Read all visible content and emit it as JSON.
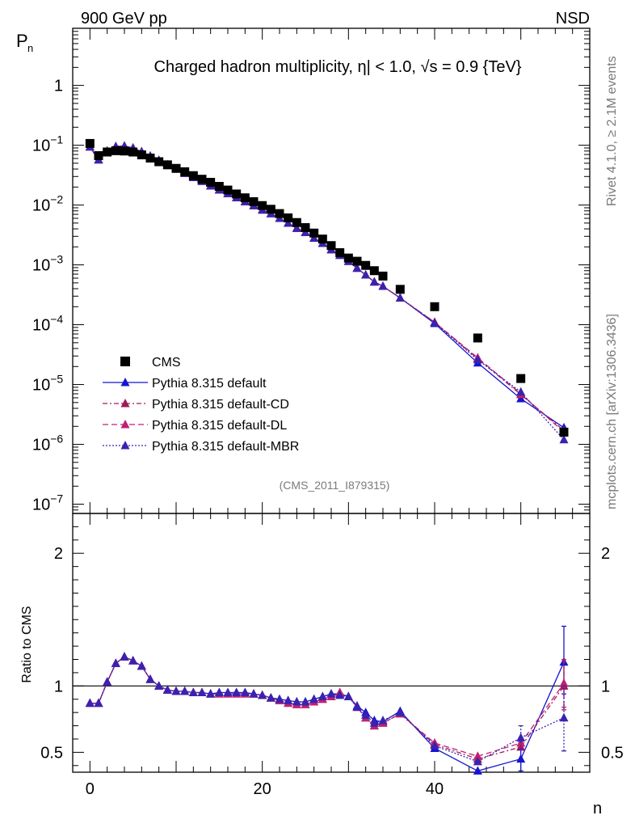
{
  "header": {
    "left": "900 GeV pp",
    "right": "NSD"
  },
  "side_labels": {
    "rivet": "Rivet 4.1.0, ≥ 2.1M events",
    "mcplots": "mcplots.cern.ch [arXiv:1306.3436]"
  },
  "chart_data": [
    {
      "type": "scatter",
      "title": "Charged hadron multiplicity, η| < 1.0, √s = 0.9 {TeV}",
      "ylabel": "P",
      "ylabel_sub": "n",
      "xlabel": "n",
      "yscale": "log",
      "ylim": [
        7e-08,
        9
      ],
      "xlim": [
        -2,
        58
      ],
      "ytick_labels": [
        {
          "v": 1,
          "base": "1",
          "exp": ""
        },
        {
          "v": 0.1,
          "base": "10",
          "exp": "−1"
        },
        {
          "v": 0.01,
          "base": "10",
          "exp": "−2"
        },
        {
          "v": 0.001,
          "base": "10",
          "exp": "−3"
        },
        {
          "v": 0.0001,
          "base": "10",
          "exp": "−4"
        },
        {
          "v": 1e-05,
          "base": "10",
          "exp": "−5"
        },
        {
          "v": 1e-06,
          "base": "10",
          "exp": "−6"
        },
        {
          "v": 1e-07,
          "base": "10",
          "exp": "−7"
        }
      ],
      "annotation": "(CMS_2011_I879315)",
      "legend": {
        "position": "lower-left",
        "entries": [
          "CMS",
          "Pythia 8.315 default",
          "Pythia 8.315 default-CD",
          "Pythia 8.315 default-DL",
          "Pythia 8.315 default-MBR"
        ]
      },
      "x": [
        0,
        1,
        2,
        3,
        4,
        5,
        6,
        7,
        8,
        9,
        10,
        11,
        12,
        13,
        14,
        15,
        16,
        17,
        18,
        19,
        20,
        21,
        22,
        23,
        24,
        25,
        26,
        27,
        28,
        29,
        30,
        31,
        32,
        33,
        34,
        36,
        40,
        45,
        50,
        55
      ],
      "series": [
        {
          "name": "CMS",
          "color": "#000000",
          "style": "marker-square",
          "values": [
            0.107,
            0.067,
            0.077,
            0.081,
            0.08,
            0.077,
            0.069,
            0.061,
            0.053,
            0.047,
            0.041,
            0.036,
            0.031,
            0.027,
            0.024,
            0.0205,
            0.0178,
            0.0153,
            0.0132,
            0.0114,
            0.0098,
            0.0085,
            0.0072,
            0.0061,
            0.0051,
            0.0042,
            0.0034,
            0.0027,
            0.0021,
            0.0016,
            0.0013,
            0.00115,
            0.00098,
            0.0008,
            0.00065,
            0.00039,
            0.0002,
            6e-05,
            1.26e-05,
            1.6e-06
          ]
        },
        {
          "name": "Pythia 8.315 default",
          "color": "#1515d0",
          "style": "solid",
          "values": [
            0.094,
            0.057,
            0.08,
            0.095,
            0.097,
            0.09,
            0.078,
            0.066,
            0.056,
            0.047,
            0.04,
            0.034,
            0.029,
            0.025,
            0.021,
            0.018,
            0.0156,
            0.0133,
            0.0114,
            0.0098,
            0.0083,
            0.0072,
            0.006,
            0.005,
            0.0041,
            0.0035,
            0.0028,
            0.0023,
            0.0018,
            0.00145,
            0.00115,
            0.00088,
            0.00068,
            0.00052,
            0.00044,
            0.00028,
            0.000105,
            2.3e-05,
            5.8e-06,
            1.9e-06
          ]
        },
        {
          "name": "Pythia 8.315 default-CD",
          "color": "#a0195a",
          "style": "dashdot",
          "values": [
            0.094,
            0.057,
            0.08,
            0.095,
            0.097,
            0.09,
            0.078,
            0.066,
            0.056,
            0.047,
            0.04,
            0.034,
            0.029,
            0.025,
            0.021,
            0.018,
            0.0156,
            0.0133,
            0.0114,
            0.0098,
            0.0083,
            0.0072,
            0.006,
            0.005,
            0.0041,
            0.0035,
            0.0028,
            0.0023,
            0.0018,
            0.00145,
            0.00115,
            0.00088,
            0.00068,
            0.00052,
            0.00044,
            0.00028,
            0.00011,
            2.7e-05,
            6.8e-06,
            1.7e-06
          ]
        },
        {
          "name": "Pythia 8.315 default-DL",
          "color": "#c02070",
          "style": "dashed",
          "values": [
            0.094,
            0.057,
            0.08,
            0.095,
            0.097,
            0.09,
            0.078,
            0.066,
            0.056,
            0.047,
            0.04,
            0.034,
            0.029,
            0.025,
            0.021,
            0.018,
            0.0156,
            0.0133,
            0.0114,
            0.0098,
            0.0083,
            0.0072,
            0.006,
            0.005,
            0.0041,
            0.0035,
            0.0028,
            0.0023,
            0.0018,
            0.00145,
            0.00115,
            0.00088,
            0.00068,
            0.00052,
            0.00044,
            0.00028,
            0.00011,
            2.8e-05,
            7e-06,
            1.6e-06
          ]
        },
        {
          "name": "Pythia 8.315 default-MBR",
          "color": "#3a22b0",
          "style": "dotted",
          "values": [
            0.094,
            0.057,
            0.08,
            0.095,
            0.097,
            0.09,
            0.078,
            0.066,
            0.056,
            0.047,
            0.04,
            0.034,
            0.029,
            0.025,
            0.021,
            0.018,
            0.0156,
            0.0133,
            0.0114,
            0.0098,
            0.0083,
            0.0072,
            0.006,
            0.005,
            0.0041,
            0.0035,
            0.0028,
            0.0023,
            0.0018,
            0.00145,
            0.00115,
            0.00088,
            0.00068,
            0.00052,
            0.00044,
            0.00028,
            0.000108,
            2.6e-05,
            7.5e-06,
            1.2e-06
          ]
        }
      ]
    },
    {
      "type": "line",
      "ylabel": "Ratio to CMS",
      "xlabel": "n",
      "ylim": [
        0.35,
        2.3
      ],
      "xlim": [
        -2,
        58
      ],
      "reference_line": 1,
      "ytick_labels": [
        {
          "v": 0.5,
          "text": "0.5"
        },
        {
          "v": 1,
          "text": "1"
        },
        {
          "v": 2,
          "text": "2"
        }
      ],
      "xtick_labels": [
        {
          "v": 0,
          "text": "0"
        },
        {
          "v": 20,
          "text": "20"
        },
        {
          "v": 40,
          "text": "40"
        }
      ],
      "x": [
        0,
        1,
        2,
        3,
        4,
        5,
        6,
        7,
        8,
        9,
        10,
        11,
        12,
        13,
        14,
        15,
        16,
        17,
        18,
        19,
        20,
        21,
        22,
        23,
        24,
        25,
        26,
        27,
        28,
        29,
        30,
        31,
        32,
        33,
        34,
        36,
        40,
        45,
        50,
        55
      ],
      "series": [
        {
          "name": "Pythia 8.315 default",
          "color": "#1515d0",
          "style": "solid",
          "values": [
            0.87,
            0.87,
            1.03,
            1.17,
            1.22,
            1.19,
            1.15,
            1.05,
            1.0,
            0.97,
            0.96,
            0.96,
            0.95,
            0.95,
            0.94,
            0.95,
            0.95,
            0.95,
            0.95,
            0.94,
            0.93,
            0.91,
            0.9,
            0.89,
            0.88,
            0.88,
            0.9,
            0.92,
            0.94,
            0.94,
            0.92,
            0.85,
            0.8,
            0.74,
            0.73,
            0.81,
            0.53,
            0.36,
            0.45,
            1.18
          ],
          "errors": {
            "x": [
              50,
              55
            ],
            "lo": [
              0.36,
              0.94
            ],
            "hi": [
              0.58,
              1.45
            ]
          }
        },
        {
          "name": "Pythia 8.315 default-CD",
          "color": "#a0195a",
          "style": "dashdot",
          "values": [
            0.87,
            0.87,
            1.03,
            1.17,
            1.22,
            1.19,
            1.15,
            1.05,
            1.0,
            0.97,
            0.96,
            0.96,
            0.95,
            0.95,
            0.94,
            0.94,
            0.94,
            0.94,
            0.94,
            0.94,
            0.93,
            0.91,
            0.89,
            0.87,
            0.86,
            0.86,
            0.88,
            0.9,
            0.92,
            0.95,
            0.92,
            0.84,
            0.76,
            0.7,
            0.72,
            0.79,
            0.56,
            0.45,
            0.54,
            1.0
          ],
          "errors": {
            "x": [
              55
            ],
            "lo": [
              0.82
            ],
            "hi": [
              1.18
            ]
          }
        },
        {
          "name": "Pythia 8.315 default-DL",
          "color": "#c02070",
          "style": "dashed",
          "values": [
            0.87,
            0.87,
            1.03,
            1.17,
            1.22,
            1.19,
            1.15,
            1.05,
            1.0,
            0.97,
            0.96,
            0.96,
            0.95,
            0.95,
            0.94,
            0.94,
            0.94,
            0.94,
            0.94,
            0.94,
            0.93,
            0.91,
            0.89,
            0.87,
            0.86,
            0.86,
            0.88,
            0.9,
            0.92,
            0.95,
            0.92,
            0.84,
            0.76,
            0.7,
            0.72,
            0.79,
            0.57,
            0.47,
            0.57,
            1.02
          ],
          "errors": {
            "x": [
              55
            ],
            "lo": [
              0.84
            ],
            "hi": [
              1.2
            ]
          }
        },
        {
          "name": "Pythia 8.315 default-MBR",
          "color": "#3a22b0",
          "style": "dotted",
          "values": [
            0.87,
            0.87,
            1.03,
            1.17,
            1.22,
            1.19,
            1.15,
            1.05,
            1.0,
            0.97,
            0.96,
            0.96,
            0.95,
            0.95,
            0.94,
            0.95,
            0.95,
            0.95,
            0.95,
            0.94,
            0.93,
            0.91,
            0.9,
            0.89,
            0.88,
            0.88,
            0.9,
            0.92,
            0.94,
            0.93,
            0.92,
            0.84,
            0.78,
            0.72,
            0.74,
            0.8,
            0.55,
            0.43,
            0.61,
            0.76
          ],
          "errors": {
            "x": [
              50,
              55
            ],
            "lo": [
              0.52,
              0.51
            ],
            "hi": [
              0.7,
              1.0
            ]
          }
        }
      ]
    }
  ]
}
